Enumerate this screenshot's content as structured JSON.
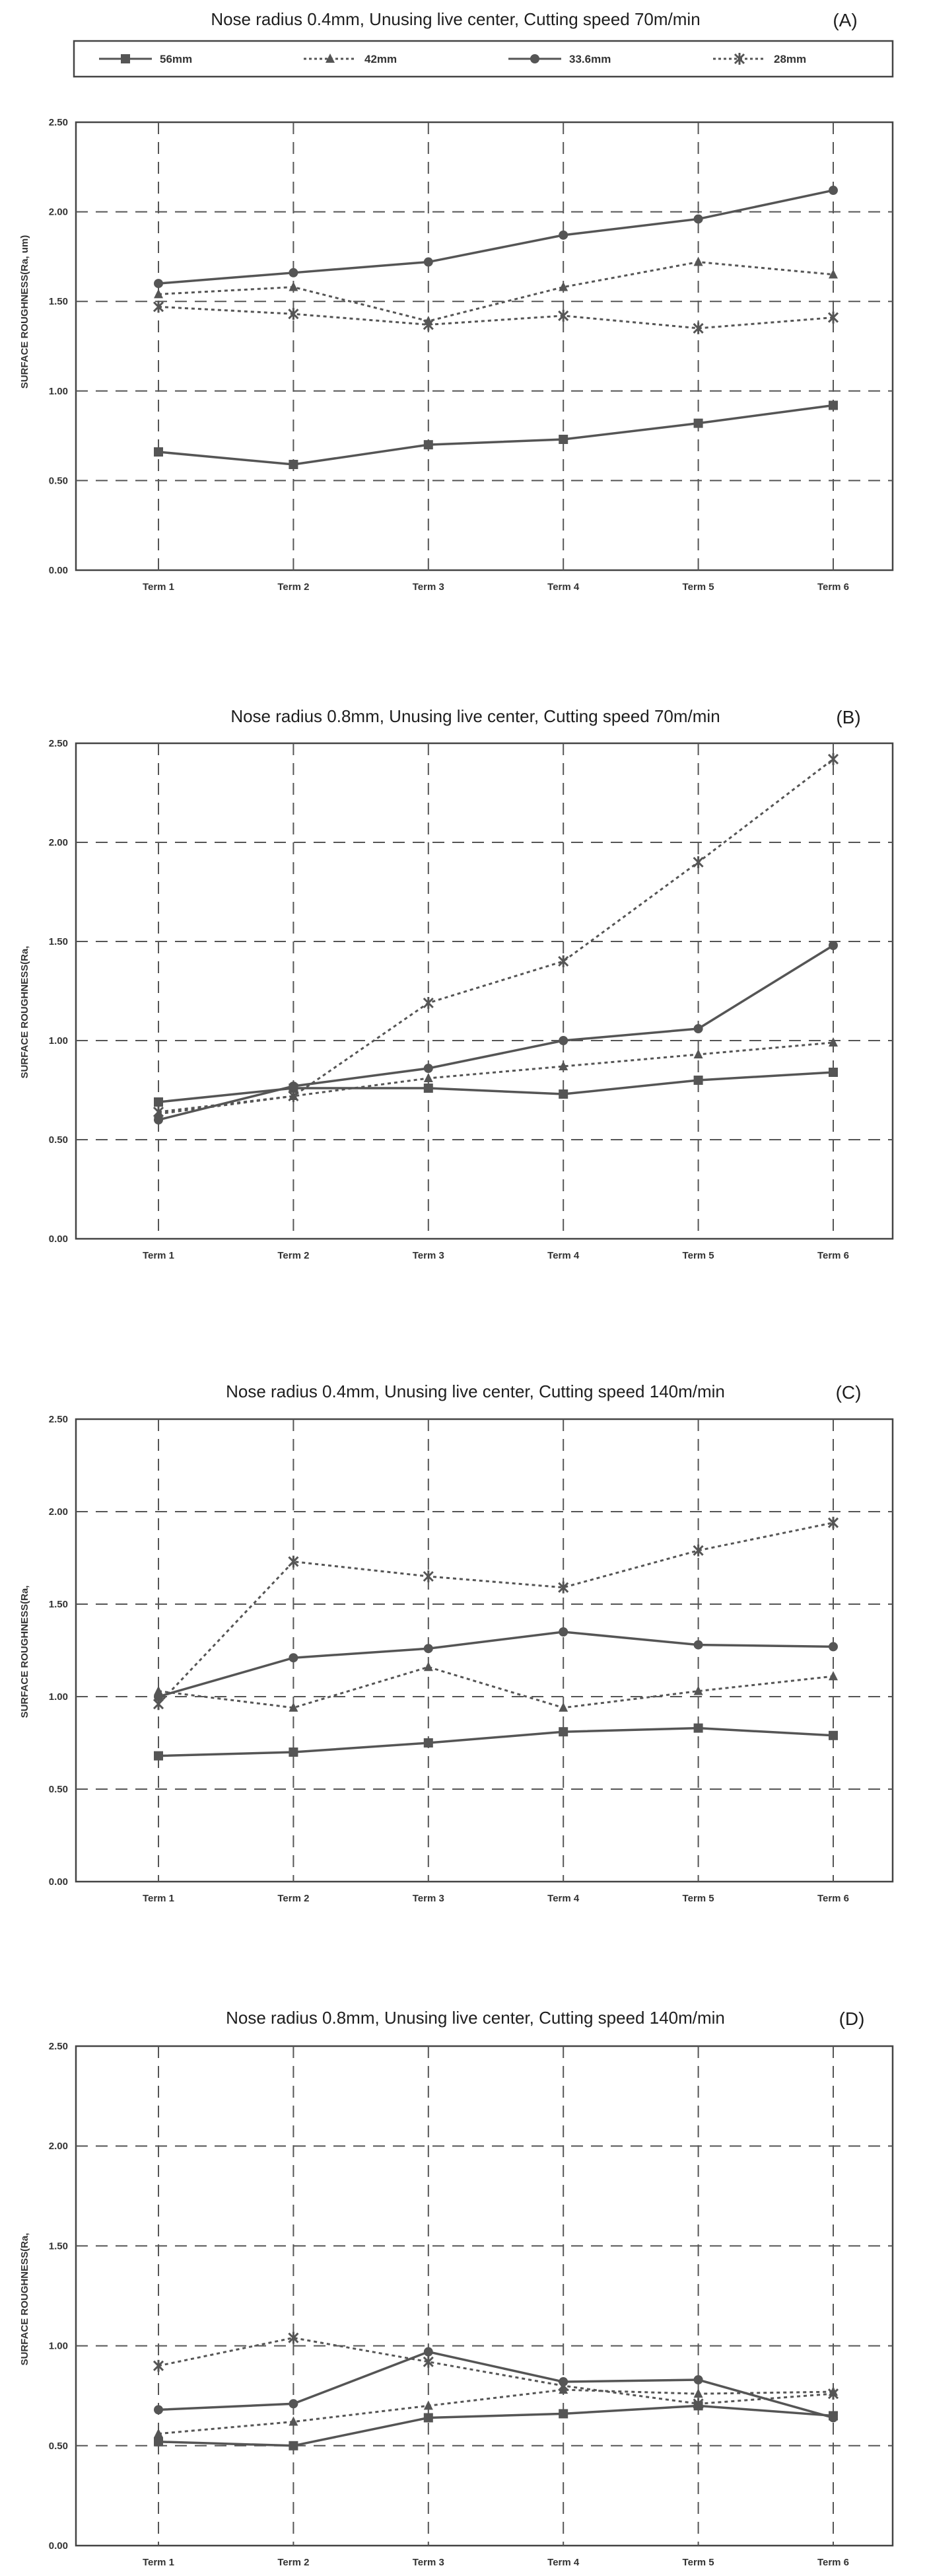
{
  "legend": {
    "entries": [
      {
        "name": "56mm",
        "color": "#555555",
        "dash": "solid",
        "marker": "square"
      },
      {
        "name": "42mm",
        "color": "#555555",
        "dash": "dotted",
        "marker": "triangle"
      },
      {
        "name": "33.6mm",
        "color": "#555555",
        "dash": "solid",
        "marker": "circle"
      },
      {
        "name": "28mm",
        "color": "#555555",
        "dash": "dotted",
        "marker": "cross"
      }
    ]
  },
  "chart_data": [
    {
      "type": "line",
      "title": "Nose radius 0.4mm, Unusing live center, Cutting speed 70m/min",
      "panel_label": "(A)",
      "ylabel": "SURFACE ROUGHNESS(Ra, um)",
      "xlabel": "",
      "ylim": [
        0,
        2.5
      ],
      "yticks": [
        "0.00",
        "0.50",
        "1.00",
        "1.50",
        "2.00",
        "2.50"
      ],
      "categories": [
        "Term 1",
        "Term 2",
        "Term 3",
        "Term 4",
        "Term 5",
        "Term 6"
      ],
      "grid": true,
      "series": [
        {
          "name": "56mm",
          "values": [
            0.66,
            0.59,
            0.7,
            0.73,
            0.82,
            0.92
          ]
        },
        {
          "name": "42mm",
          "values": [
            1.54,
            1.58,
            1.39,
            1.58,
            1.72,
            1.65
          ]
        },
        {
          "name": "33.6mm",
          "values": [
            1.6,
            1.66,
            1.72,
            1.87,
            1.96,
            2.12
          ]
        },
        {
          "name": "28mm",
          "values": [
            1.47,
            1.43,
            1.37,
            1.42,
            1.35,
            1.41
          ]
        }
      ]
    },
    {
      "type": "line",
      "title": "Nose radius 0.8mm, Unusing live center, Cutting speed 70m/min",
      "panel_label": "(B)",
      "ylabel": "SURFACE ROUGHNESS(Ra,",
      "xlabel": "",
      "ylim": [
        0,
        2.5
      ],
      "yticks": [
        "0.00",
        "0.50",
        "1.00",
        "1.50",
        "2.00",
        "2.50"
      ],
      "categories": [
        "Term 1",
        "Term 2",
        "Term 3",
        "Term 4",
        "Term 5",
        "Term 6"
      ],
      "grid": true,
      "series": [
        {
          "name": "56mm",
          "values": [
            0.69,
            0.76,
            0.76,
            0.73,
            0.8,
            0.84
          ]
        },
        {
          "name": "42mm",
          "values": [
            0.63,
            0.72,
            0.81,
            0.87,
            0.93,
            0.99
          ]
        },
        {
          "name": "33.6mm",
          "values": [
            0.6,
            0.77,
            0.86,
            1.0,
            1.06,
            1.48
          ]
        },
        {
          "name": "28mm",
          "values": [
            0.64,
            0.72,
            1.19,
            1.4,
            1.9,
            2.42
          ]
        }
      ]
    },
    {
      "type": "line",
      "title": "Nose radius 0.4mm, Unusing live center, Cutting speed 140m/min",
      "panel_label": "(C)",
      "ylabel": "SURFACE ROUGHNESS(Ra,",
      "xlabel": "",
      "ylim": [
        0,
        2.5
      ],
      "yticks": [
        "0.00",
        "0.50",
        "1.00",
        "1.50",
        "2.00",
        "2.50"
      ],
      "categories": [
        "Term 1",
        "Term 2",
        "Term 3",
        "Term 4",
        "Term 5",
        "Term 6"
      ],
      "grid": true,
      "series": [
        {
          "name": "56mm",
          "values": [
            0.68,
            0.7,
            0.75,
            0.81,
            0.83,
            0.79
          ]
        },
        {
          "name": "42mm",
          "values": [
            1.03,
            0.94,
            1.16,
            0.94,
            1.03,
            1.11
          ]
        },
        {
          "name": "33.6mm",
          "values": [
            1.0,
            1.21,
            1.26,
            1.35,
            1.28,
            1.27
          ]
        },
        {
          "name": "28mm",
          "values": [
            0.96,
            1.73,
            1.65,
            1.59,
            1.79,
            1.94
          ]
        }
      ]
    },
    {
      "type": "line",
      "title": "Nose radius 0.8mm, Unusing live center, Cutting speed 140m/min",
      "panel_label": "(D)",
      "ylabel": "SURFACE ROUGHNESS(Ra,",
      "xlabel": "",
      "ylim": [
        0,
        2.5
      ],
      "yticks": [
        "0.00",
        "0.50",
        "1.00",
        "1.50",
        "2.00",
        "2.50"
      ],
      "categories": [
        "Term 1",
        "Term 2",
        "Term 3",
        "Term 4",
        "Term 5",
        "Term 6"
      ],
      "grid": true,
      "series": [
        {
          "name": "56mm",
          "values": [
            0.52,
            0.5,
            0.64,
            0.66,
            0.7,
            0.65
          ]
        },
        {
          "name": "42mm",
          "values": [
            0.56,
            0.62,
            0.7,
            0.78,
            0.76,
            0.77
          ]
        },
        {
          "name": "33.6mm",
          "values": [
            0.68,
            0.71,
            0.97,
            0.82,
            0.83,
            0.64
          ]
        },
        {
          "name": "28mm",
          "values": [
            0.9,
            1.04,
            0.92,
            0.8,
            0.71,
            0.76
          ]
        }
      ]
    }
  ]
}
